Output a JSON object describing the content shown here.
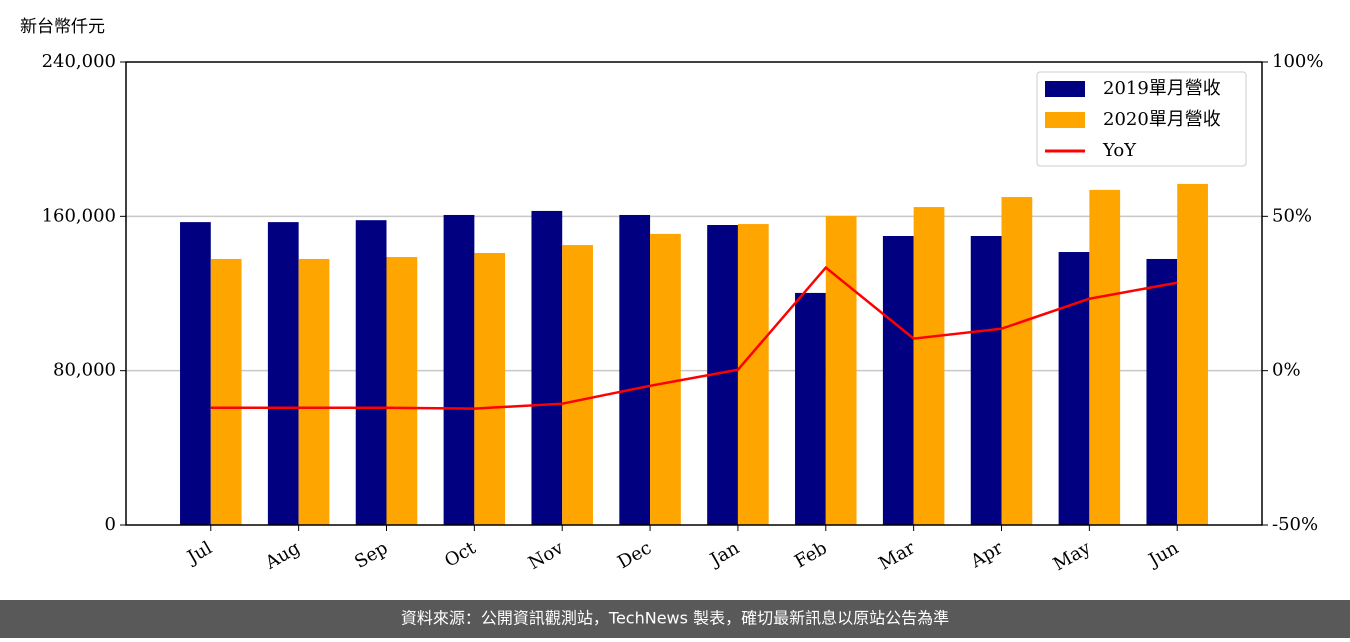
{
  "chart_data": {
    "type": "bar_line",
    "y_unit_label": "新台幣仟元",
    "categories": [
      "Jul",
      "Aug",
      "Sep",
      "Oct",
      "Nov",
      "Dec",
      "Jan",
      "Feb",
      "Mar",
      "Apr",
      "May",
      "Jun"
    ],
    "series": [
      {
        "name": "2019單月營收",
        "color": "#000080",
        "type": "bar",
        "values": [
          157000,
          157000,
          158000,
          160700,
          162800,
          160700,
          155500,
          120300,
          149800,
          149800,
          141500,
          137900
        ]
      },
      {
        "name": "2020單月營收",
        "color": "#ffa500",
        "type": "bar",
        "values": [
          137900,
          137900,
          138900,
          141000,
          145100,
          150900,
          156000,
          160200,
          164800,
          170000,
          173700,
          176800
        ]
      },
      {
        "name": "YoY",
        "color": "#ff0000",
        "type": "line",
        "axis": "y2",
        "values": [
          -12.0,
          -12.0,
          -12.0,
          -12.3,
          -10.7,
          -4.9,
          0.3,
          33.4,
          10.4,
          13.6,
          23.3,
          28.5
        ]
      }
    ],
    "ylim": [
      0,
      240000
    ],
    "yticks": [
      0,
      {
        "value": 80000,
        "label": "80,000"
      },
      {
        "value": 160000,
        "label": "160,000"
      },
      {
        "value": 240000,
        "label": "240,000"
      }
    ],
    "y2lim": [
      -50,
      100
    ],
    "y2ticks": [
      {
        "value": -50,
        "label": "-50%"
      },
      {
        "value": 0,
        "label": "0%"
      },
      {
        "value": 50,
        "label": "50%"
      },
      {
        "value": 100,
        "label": "100%"
      }
    ],
    "grid": true,
    "legend": "upper right",
    "footer": "資料來源：公開資訊觀測站，TechNews 製表，確切最新訊息以原站公告為準"
  }
}
